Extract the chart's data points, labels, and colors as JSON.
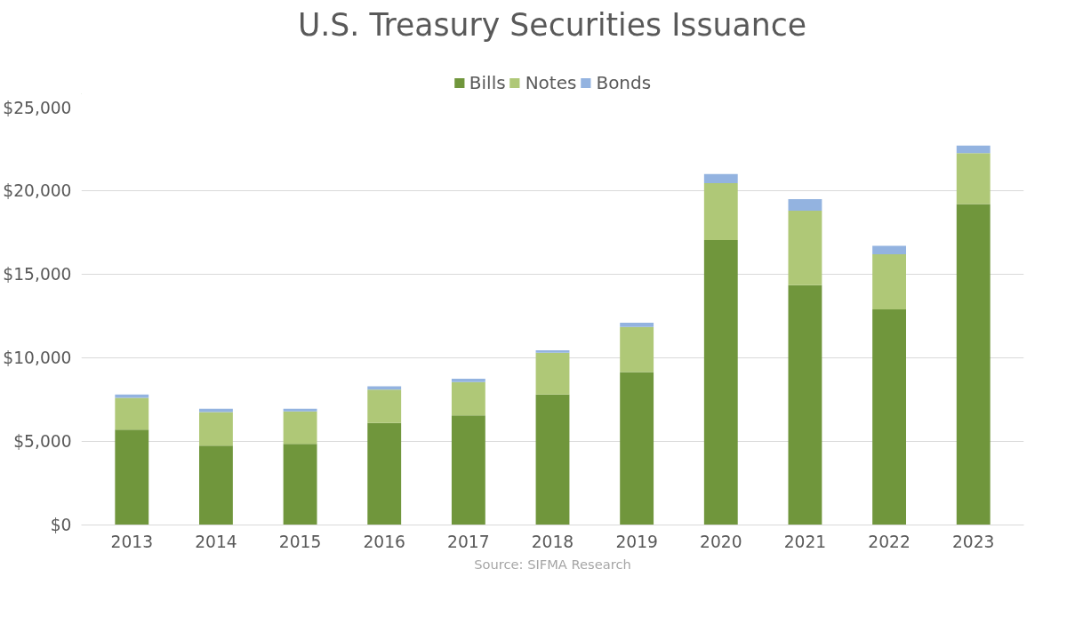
{
  "chart_data": {
    "type": "bar",
    "title": "U.S. Treasury Securities Issuance",
    "stacked": true,
    "legend": "top",
    "grid": "y",
    "categories": [
      "2013",
      "2014",
      "2015",
      "2016",
      "2017",
      "2018",
      "2019",
      "2020",
      "2021",
      "2022",
      "2023"
    ],
    "series": [
      {
        "name": "Bills",
        "color": "#70963c",
        "values": [
          5700,
          4750,
          4850,
          6100,
          6550,
          7800,
          9150,
          17050,
          14350,
          12900,
          19200
        ]
      },
      {
        "name": "Notes",
        "color": "#afc877",
        "values": [
          1900,
          2000,
          1950,
          2000,
          2000,
          2500,
          2700,
          3400,
          4450,
          3300,
          3050
        ]
      },
      {
        "name": "Bonds",
        "color": "#93b3e0",
        "values": [
          200,
          200,
          150,
          200,
          200,
          150,
          250,
          550,
          700,
          500,
          450
        ]
      }
    ],
    "ylim": [
      0,
      25000
    ],
    "yticks": [
      {
        "value": 0,
        "label": "$0"
      },
      {
        "value": 5000,
        "label": "$5,000"
      },
      {
        "value": 10000,
        "label": "$10,000"
      },
      {
        "value": 15000,
        "label": "$15,000"
      },
      {
        "value": 20000,
        "label": "$20,000"
      },
      {
        "value": 25000,
        "label": "$25,000"
      }
    ],
    "annotations": [
      "Source: SIFMA Research"
    ]
  }
}
